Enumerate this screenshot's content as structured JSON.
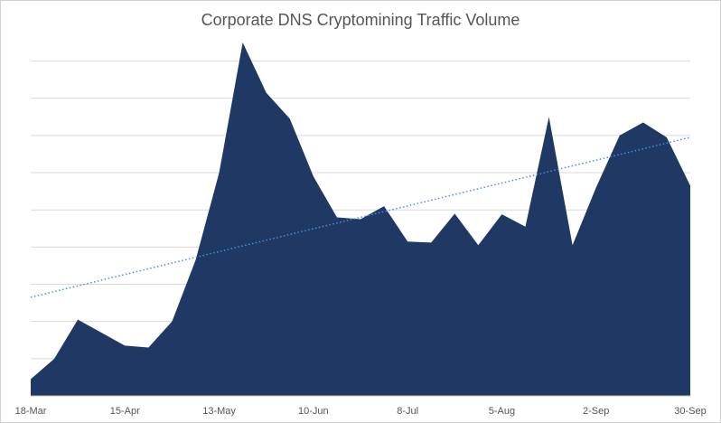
{
  "chart_data": {
    "type": "area",
    "title": "Corporate DNS Cryptomining Traffic Volume",
    "xlabel": "",
    "ylabel": "",
    "x_tick_labels": [
      "18-Mar",
      "15-Apr",
      "13-May",
      "10-Jun",
      "8-Jul",
      "5-Aug",
      "2-Sep",
      "30-Sep"
    ],
    "x_tick_positions": [
      0,
      4,
      8,
      12,
      16,
      20,
      24,
      28
    ],
    "ylim": [
      0,
      950
    ],
    "y_gridlines": [
      0,
      100,
      200,
      300,
      400,
      500,
      600,
      700,
      800,
      900
    ],
    "y_tick_labels_visible": false,
    "grid": true,
    "series": [
      {
        "name": "Traffic Volume",
        "color": "#203864",
        "values": [
          45,
          100,
          205,
          170,
          135,
          130,
          200,
          365,
          600,
          950,
          815,
          745,
          590,
          480,
          475,
          510,
          415,
          412,
          490,
          405,
          488,
          455,
          750,
          405,
          560,
          700,
          735,
          695,
          565
        ]
      }
    ],
    "trendline": {
      "type": "linear",
      "style": "dotted",
      "color": "#4a90d9",
      "start": 265,
      "end": 695
    }
  }
}
